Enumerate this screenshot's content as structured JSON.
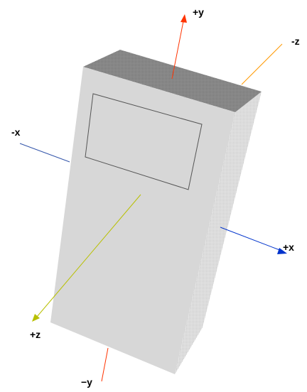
{
  "axes": {
    "pos_y": {
      "label": "+y",
      "color": "#ff3300"
    },
    "neg_y": {
      "label": "−y",
      "color": "#ff3300"
    },
    "pos_x": {
      "label": "+x",
      "color": "#0033cc"
    },
    "neg_x": {
      "label": "-x",
      "color": "#3355aa"
    },
    "pos_z": {
      "label": "+z",
      "color": "#b8c000"
    },
    "neg_z": {
      "label": "-z",
      "color": "#ff9900"
    }
  },
  "device": {
    "front_color": "#d7d7d7",
    "top_color": "#8e8e8e",
    "side_color": "#e2e2e2",
    "screen_outline_color": "#555555"
  }
}
